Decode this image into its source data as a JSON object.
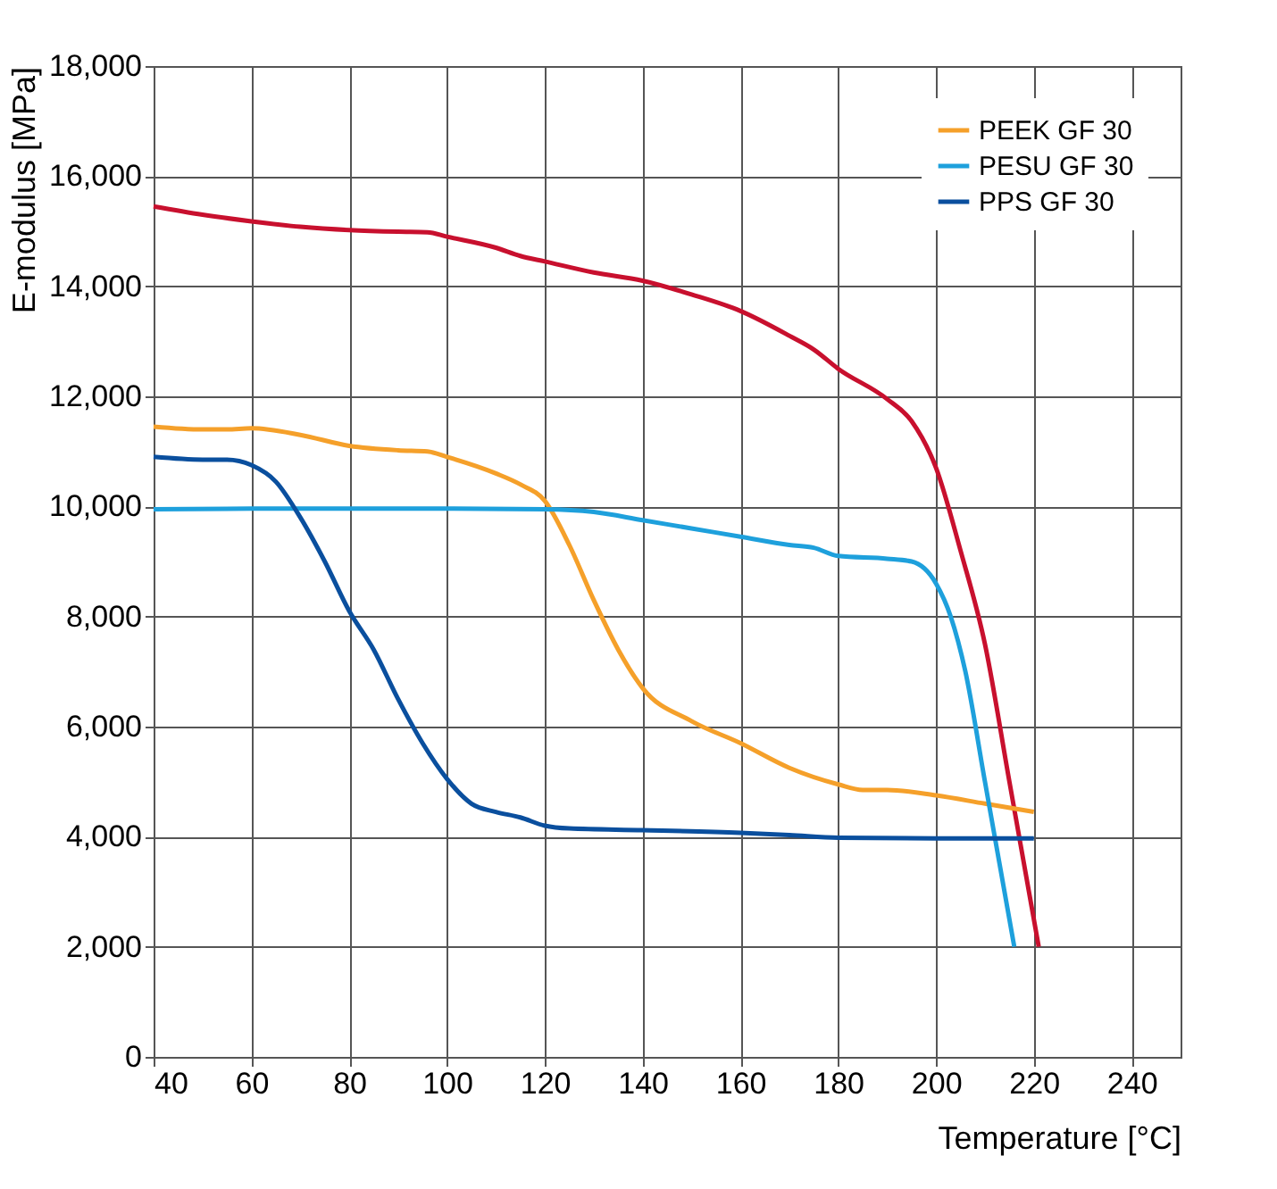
{
  "chart_data": {
    "type": "line",
    "xlabel": "Temperature [°C]",
    "ylabel": "E-modulus [MPa]",
    "legend": "top right",
    "grid": true,
    "xlim": [
      40,
      250
    ],
    "ylim": [
      0,
      18000
    ],
    "xticks": [
      40,
      60,
      80,
      100,
      120,
      140,
      160,
      180,
      200,
      220,
      240
    ],
    "yticks": [
      0,
      {
        "value": 2000,
        "label": "2,000"
      },
      {
        "value": 4000,
        "label": "4,000"
      },
      {
        "value": 6000,
        "label": "6,000"
      },
      {
        "value": 8000,
        "label": "8,000"
      },
      {
        "value": 10000,
        "label": "10,000"
      },
      {
        "value": 12000,
        "label": "12,000"
      },
      {
        "value": 14000,
        "label": "14,000"
      },
      {
        "value": 16000,
        "label": "16,000"
      },
      {
        "value": 18000,
        "label": "18,000"
      }
    ],
    "series": [
      {
        "color": "#c8102e",
        "x": [
          40,
          50,
          60,
          70,
          80,
          90,
          96,
          100,
          110,
          115,
          120,
          130,
          140,
          150,
          160,
          170,
          175,
          180,
          190,
          195,
          200,
          205,
          210,
          215,
          221
        ],
        "values": [
          15450,
          15300,
          15180,
          15080,
          15020,
          14990,
          14980,
          14900,
          14700,
          14550,
          14450,
          14250,
          14100,
          13850,
          13550,
          13100,
          12850,
          12500,
          11950,
          11550,
          10700,
          9200,
          7500,
          5000,
          2000
        ]
      },
      {
        "name": "PEEK GF 30",
        "color": "#f5a02a",
        "x": [
          40,
          50,
          55,
          60,
          70,
          80,
          90,
          96,
          100,
          110,
          115,
          120,
          125,
          130,
          135,
          140,
          150,
          160,
          170,
          180,
          185,
          190,
          200,
          210,
          220
        ],
        "values": [
          11450,
          11400,
          11400,
          11420,
          11300,
          11100,
          11020,
          11000,
          10900,
          10600,
          10400,
          10100,
          9300,
          8300,
          7400,
          6700,
          6100,
          5700,
          5250,
          4950,
          4850,
          4850,
          4750,
          4600,
          4450
        ]
      },
      {
        "name": "PESU GF 30",
        "color": "#1ea0dc",
        "x": [
          40,
          60,
          80,
          100,
          120,
          130,
          140,
          150,
          160,
          170,
          175,
          180,
          190,
          195,
          200,
          203,
          206,
          210,
          213,
          216
        ],
        "values": [
          9950,
          9960,
          9960,
          9960,
          9950,
          9900,
          9750,
          9600,
          9450,
          9300,
          9250,
          9100,
          9050,
          9000,
          8600,
          8000,
          7000,
          5000,
          3500,
          2000
        ]
      },
      {
        "name": "PPS GF 30",
        "color": "#0a4f9e",
        "x": [
          40,
          50,
          55,
          60,
          65,
          70,
          75,
          80,
          85,
          90,
          95,
          100,
          105,
          110,
          115,
          120,
          125,
          140,
          160,
          170,
          180,
          200,
          220
        ],
        "values": [
          10900,
          10850,
          10850,
          10750,
          10450,
          9800,
          9000,
          8100,
          7400,
          6500,
          5700,
          5050,
          4600,
          4450,
          4350,
          4200,
          4150,
          4120,
          4070,
          4030,
          3980,
          3970,
          3970
        ]
      }
    ]
  }
}
